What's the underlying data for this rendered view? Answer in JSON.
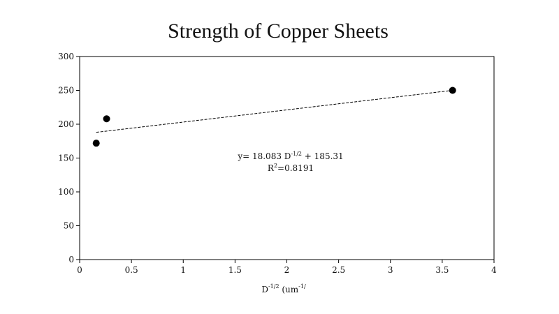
{
  "chart_data": {
    "type": "scatter",
    "title": "Strength of Copper Sheets",
    "xlabel": "D",
    "xlabel_sup": "-1/2",
    "xlabel_units": " (um",
    "xlabel_units_sup": "-1/",
    "ylabel": "",
    "xlim": [
      0,
      4
    ],
    "ylim": [
      0,
      300
    ],
    "xticks": [
      0,
      0.5,
      1,
      1.5,
      2,
      2.5,
      3,
      3.5,
      4
    ],
    "xtick_labels": [
      "0",
      "0.5",
      "1",
      "1.5",
      "2",
      "2.5",
      "3",
      "3.5",
      "4"
    ],
    "yticks": [
      0,
      50,
      100,
      150,
      200,
      250,
      300
    ],
    "ytick_labels": [
      "0",
      "50",
      "100",
      "150",
      "200",
      "250",
      "300"
    ],
    "grid": false,
    "marker_color": "#000000",
    "series": [
      {
        "x": [
          0.16,
          0.26,
          3.6
        ],
        "y": [
          172,
          208,
          250
        ]
      }
    ],
    "trendline": {
      "style": "dashed",
      "color": "#000000",
      "x": [
        0.16,
        3.6
      ],
      "y": [
        188,
        250
      ],
      "equation": {
        "prefix": "y= 18.083 D",
        "sup": "-1/2",
        "suffix": " + 185.31"
      },
      "r_squared": {
        "prefix": "R",
        "sup": "2",
        "suffix": "=0.8191"
      }
    }
  }
}
